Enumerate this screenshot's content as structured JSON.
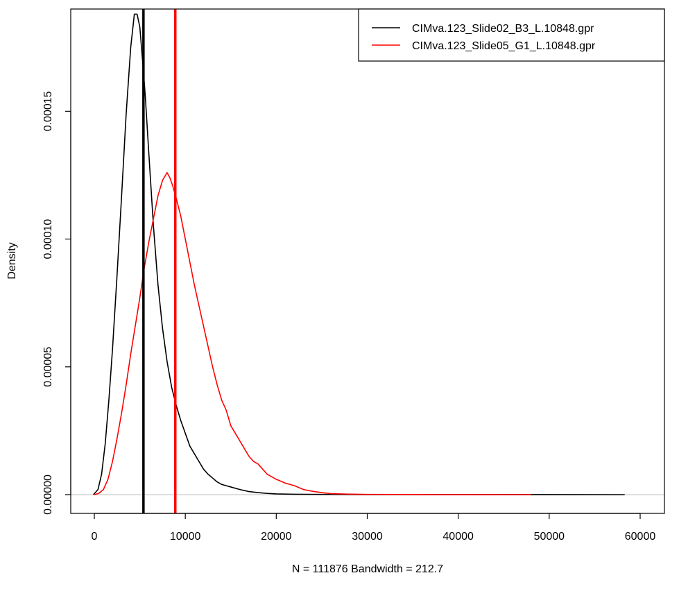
{
  "chart_data": {
    "type": "line",
    "title": "",
    "xlabel": "N = 111876   Bandwidth = 212.7",
    "ylabel": "Density",
    "xlim": [
      0,
      60000
    ],
    "ylim": [
      0,
      0.00019
    ],
    "x_ticks": [
      0,
      10000,
      20000,
      30000,
      40000,
      50000,
      60000
    ],
    "x_tick_labels": [
      "0",
      "10000",
      "20000",
      "30000",
      "40000",
      "50000",
      "60000"
    ],
    "y_ticks": [
      0,
      5e-05,
      0.0001,
      0.00015
    ],
    "y_tick_labels": [
      "0.00000",
      "0.00005",
      "0.00010",
      "0.00015"
    ],
    "grid": false,
    "legend_position": "top-right",
    "series": [
      {
        "name": "CIMva.123_Slide02_B3_L.10848.gpr",
        "color": "#000000",
        "mean_line": 5400,
        "x": [
          -100,
          400,
          800,
          1200,
          1600,
          2000,
          2500,
          3000,
          3500,
          4000,
          4400,
          4700,
          5000,
          5300,
          5600,
          6000,
          6500,
          7000,
          7500,
          8000,
          8500,
          9000,
          9500,
          10000,
          10500,
          11000,
          11500,
          12000,
          12500,
          13000,
          13500,
          14000,
          14500,
          15000,
          16000,
          17000,
          18000,
          19000,
          20000,
          22000,
          25000,
          30000,
          40000,
          50000,
          58300
        ],
        "y": [
          0,
          2e-06,
          8e-06,
          2e-05,
          3.7e-05,
          5.7e-05,
          8.6e-05,
          0.000117,
          0.000149,
          0.000175,
          0.000188,
          0.000188,
          0.000183,
          0.00017,
          0.000156,
          0.000133,
          0.000105,
          8.2e-05,
          6.5e-05,
          5.2e-05,
          4.2e-05,
          3.5e-05,
          2.9e-05,
          2.4e-05,
          1.9e-05,
          1.6e-05,
          1.3e-05,
          1e-05,
          8e-06,
          6.5e-06,
          5e-06,
          4e-06,
          3.5e-06,
          3e-06,
          2e-06,
          1.2e-06,
          8e-07,
          5e-07,
          3e-07,
          1.5e-07,
          8e-08,
          3e-08,
          1e-08,
          5e-09,
          0
        ]
      },
      {
        "name": "CIMva.123_Slide05_G1_L.10848.gpr",
        "color": "#ff0000",
        "mean_line": 8900,
        "x": [
          0,
          500,
          1000,
          1500,
          2000,
          2500,
          3000,
          3500,
          4000,
          4500,
          5000,
          5500,
          6000,
          6500,
          7000,
          7500,
          8000,
          8300,
          8600,
          9000,
          9500,
          10000,
          10500,
          11000,
          11500,
          12000,
          12500,
          13000,
          13500,
          14000,
          14500,
          15000,
          15500,
          16000,
          16500,
          17000,
          17500,
          18000,
          18500,
          19000,
          19500,
          20000,
          21000,
          21500,
          22000,
          23000,
          24000,
          25000,
          26000,
          28000,
          30000,
          35000,
          40000,
          48000
        ],
        "y": [
          0,
          5e-07,
          2e-06,
          6e-06,
          1.3e-05,
          2.2e-05,
          3.2e-05,
          4.3e-05,
          5.5e-05,
          6.6e-05,
          7.7e-05,
          8.9e-05,
          9.9e-05,
          0.000108,
          0.000117,
          0.000123,
          0.000126,
          0.000124,
          0.000121,
          0.000116,
          0.000109,
          0.0001,
          9.1e-05,
          8.2e-05,
          7.4e-05,
          6.6e-05,
          5.8e-05,
          5e-05,
          4.3e-05,
          3.7e-05,
          3.3e-05,
          2.7e-05,
          2.4e-05,
          2.1e-05,
          1.8e-05,
          1.5e-05,
          1.3e-05,
          1.2e-05,
          1e-05,
          8e-06,
          7e-06,
          6e-06,
          4.5e-06,
          4e-06,
          3.5e-06,
          2e-06,
          1.3e-06,
          8e-07,
          4e-07,
          2e-07,
          1e-07,
          5e-08,
          2e-08,
          0
        ]
      }
    ]
  }
}
